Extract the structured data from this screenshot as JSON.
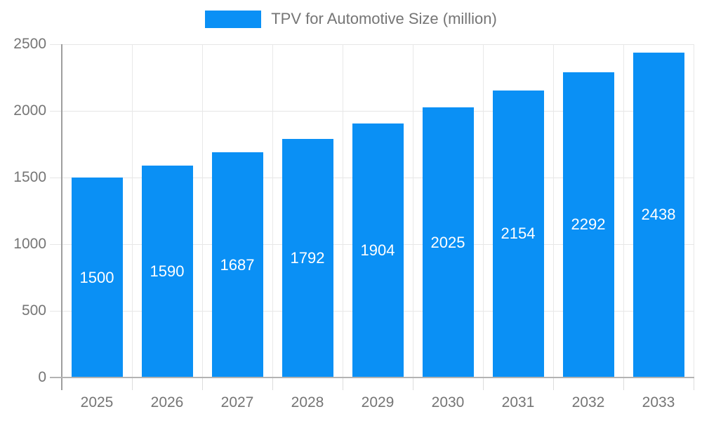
{
  "chart_data": {
    "type": "bar",
    "title": "TPV for Automotive Size (million)",
    "legend_position": "top",
    "categories": [
      "2025",
      "2026",
      "2027",
      "2028",
      "2029",
      "2030",
      "2031",
      "2032",
      "2033"
    ],
    "series": [
      {
        "name": "TPV for Automotive Size (million)",
        "values": [
          1500,
          1590,
          1687,
          1792,
          1904,
          2025,
          2154,
          2292,
          2438
        ]
      }
    ],
    "xlabel": "",
    "ylabel": "",
    "ylim": [
      0,
      2500
    ],
    "yticks": [
      0,
      500,
      1000,
      1500,
      2000,
      2500
    ],
    "grid": true,
    "bar_value_labels": true,
    "colors": {
      "bar": "#0a90f5",
      "bar_value_text": "#ffffff",
      "axis_text": "#757575",
      "gridline_h": "#e6e6e6",
      "gridline_v": "#e8e8e8",
      "tick_below_axis": "#dcdcdc",
      "axis_line_y": "#9e9e9e",
      "axis_line_x": "#b3b3b3",
      "background": "#ffffff"
    }
  }
}
